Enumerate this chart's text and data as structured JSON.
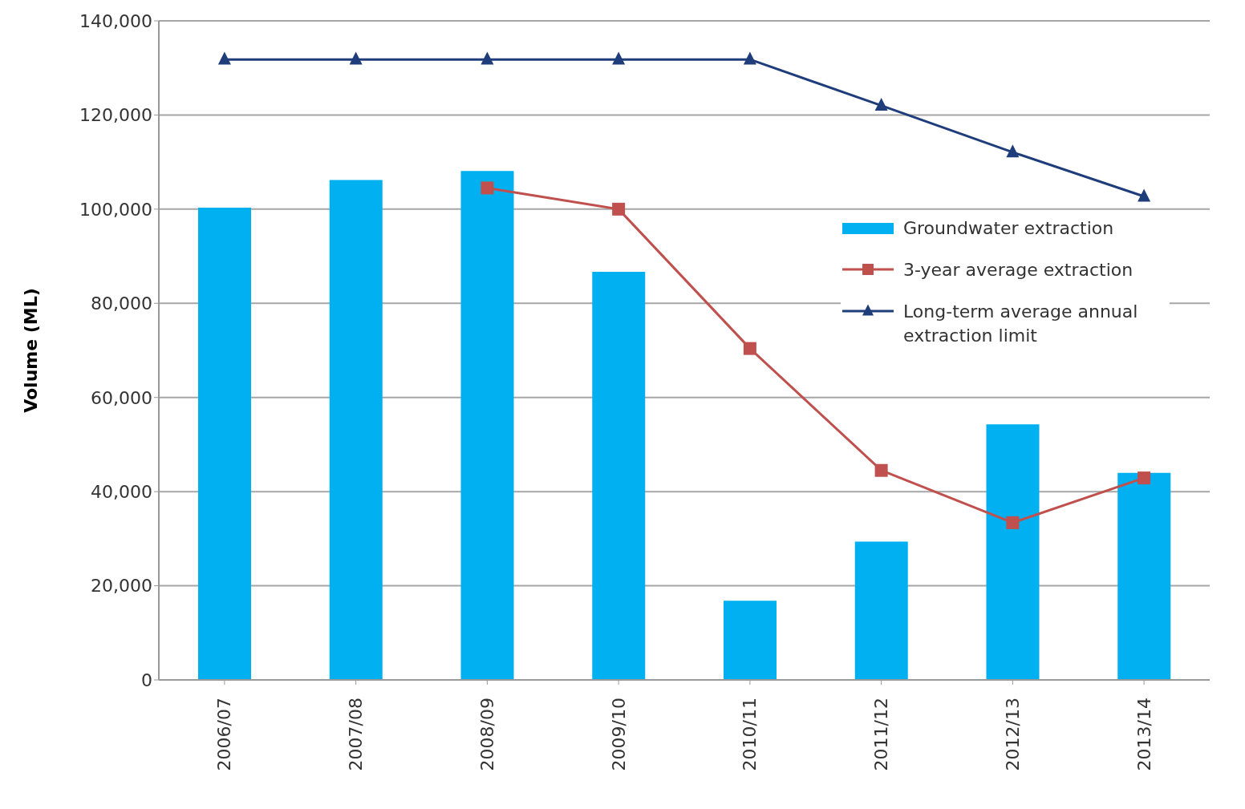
{
  "chart_data": {
    "type": "bar",
    "ylabel": "Volume (ML)",
    "categories": [
      "2006/07",
      "2007/08",
      "2008/09",
      "2009/10",
      "2010/11",
      "2011/12",
      "2012/13",
      "2013/14"
    ],
    "series": [
      {
        "name": "Groundwater extraction",
        "color": "#00b0f0",
        "values": [
          100300,
          106200,
          108100,
          86700,
          16800,
          29400,
          54300,
          44000
        ]
      },
      {
        "name": "3-year average extraction",
        "type": "line",
        "color": "#c0504d",
        "marker": "square",
        "values": [
          null,
          null,
          104500,
          100000,
          70400,
          44500,
          33400,
          42900
        ]
      },
      {
        "name": "Long-term average annual extraction limit",
        "type": "line",
        "color": "#1f3d7a",
        "marker": "triangle",
        "values": [
          131800,
          131800,
          131800,
          131800,
          131800,
          122000,
          112100,
          102700
        ]
      }
    ],
    "ylim": [
      0,
      140000
    ],
    "yticks": [
      {
        "value": 0,
        "label": "0"
      },
      {
        "value": 20000,
        "label": "20,000"
      },
      {
        "value": 40000,
        "label": "40,000"
      },
      {
        "value": 60000,
        "label": "60,000"
      },
      {
        "value": 80000,
        "label": "80,000"
      },
      {
        "value": 100000,
        "label": "100,000"
      },
      {
        "value": 120000,
        "label": "120,000"
      },
      {
        "value": 140000,
        "label": "140,000"
      }
    ],
    "grid": "y",
    "legend": "right"
  }
}
